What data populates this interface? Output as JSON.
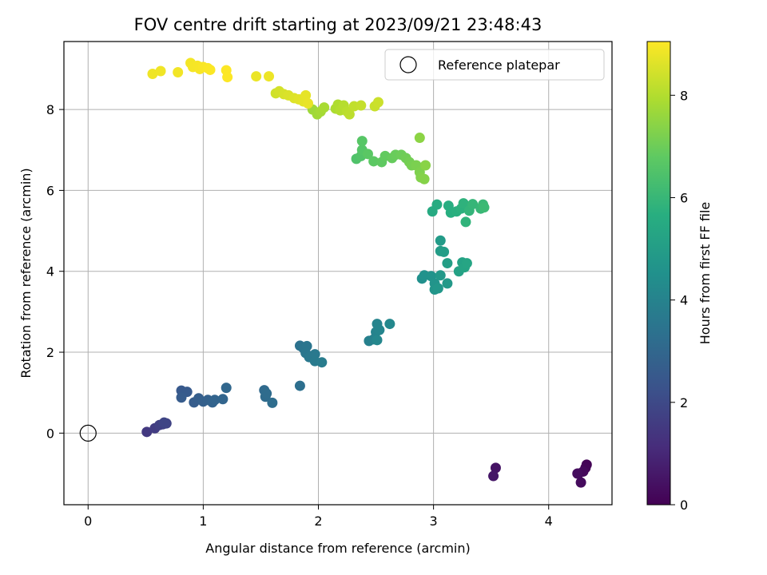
{
  "chart_data": {
    "type": "scatter",
    "title": "FOV centre drift starting at 2023/09/21 23:48:43",
    "xlabel": "Angular distance from reference (arcmin)",
    "ylabel": "Rotation from reference (arcmin)",
    "xlim": [
      -0.21,
      4.55
    ],
    "ylim": [
      -1.77,
      9.68
    ],
    "xticks": [
      0,
      1,
      2,
      3,
      4
    ],
    "yticks": [
      0,
      2,
      4,
      6,
      8
    ],
    "grid": true,
    "legend": {
      "placement": "top-right",
      "entries": [
        "Reference platepar"
      ]
    },
    "colorbar": {
      "label": "Hours from first FF file",
      "colormap": "viridis",
      "range": [
        0,
        9.05
      ],
      "ticks": [
        0,
        2,
        4,
        6,
        8
      ]
    },
    "reference_point": {
      "x": 0,
      "y": 0,
      "label": "Reference platepar"
    },
    "points": [
      {
        "x": 4.33,
        "y": -0.78,
        "c": 0.05
      },
      {
        "x": 4.32,
        "y": -0.86,
        "c": 0.1
      },
      {
        "x": 4.26,
        "y": -1.0,
        "c": 0.15
      },
      {
        "x": 4.3,
        "y": -0.95,
        "c": 0.2
      },
      {
        "x": 4.28,
        "y": -1.22,
        "c": 0.25
      },
      {
        "x": 4.25,
        "y": -1.0,
        "c": 0.3
      },
      {
        "x": 3.54,
        "y": -0.86,
        "c": 0.45
      },
      {
        "x": 3.52,
        "y": -1.06,
        "c": 0.55
      },
      {
        "x": 0.51,
        "y": 0.03,
        "c": 1.5
      },
      {
        "x": 0.58,
        "y": 0.12,
        "c": 1.6
      },
      {
        "x": 0.62,
        "y": 0.2,
        "c": 1.7
      },
      {
        "x": 0.65,
        "y": 0.22,
        "c": 1.75
      },
      {
        "x": 0.68,
        "y": 0.24,
        "c": 1.8
      },
      {
        "x": 0.66,
        "y": 0.26,
        "c": 1.85
      },
      {
        "x": 0.81,
        "y": 1.05,
        "c": 2.5
      },
      {
        "x": 0.86,
        "y": 1.02,
        "c": 2.55
      },
      {
        "x": 0.81,
        "y": 0.88,
        "c": 2.6
      },
      {
        "x": 0.92,
        "y": 0.76,
        "c": 2.65
      },
      {
        "x": 0.96,
        "y": 0.86,
        "c": 2.7
      },
      {
        "x": 1.0,
        "y": 0.78,
        "c": 2.75
      },
      {
        "x": 1.04,
        "y": 0.82,
        "c": 2.8
      },
      {
        "x": 1.08,
        "y": 0.76,
        "c": 2.85
      },
      {
        "x": 1.1,
        "y": 0.82,
        "c": 2.9
      },
      {
        "x": 1.17,
        "y": 0.84,
        "c": 2.95
      },
      {
        "x": 1.2,
        "y": 1.12,
        "c": 3.0
      },
      {
        "x": 1.53,
        "y": 1.06,
        "c": 3.1
      },
      {
        "x": 1.54,
        "y": 0.9,
        "c": 3.15
      },
      {
        "x": 1.55,
        "y": 0.98,
        "c": 3.18
      },
      {
        "x": 1.6,
        "y": 0.75,
        "c": 3.2
      },
      {
        "x": 1.84,
        "y": 1.17,
        "c": 3.3
      },
      {
        "x": 1.84,
        "y": 2.16,
        "c": 3.4
      },
      {
        "x": 1.87,
        "y": 2.1,
        "c": 3.45
      },
      {
        "x": 1.9,
        "y": 2.15,
        "c": 3.5
      },
      {
        "x": 1.89,
        "y": 1.98,
        "c": 3.55
      },
      {
        "x": 1.92,
        "y": 1.88,
        "c": 3.6
      },
      {
        "x": 1.97,
        "y": 1.95,
        "c": 3.65
      },
      {
        "x": 1.97,
        "y": 1.78,
        "c": 3.7
      },
      {
        "x": 2.03,
        "y": 1.75,
        "c": 3.75
      },
      {
        "x": 2.44,
        "y": 2.28,
        "c": 3.9
      },
      {
        "x": 2.48,
        "y": 2.32,
        "c": 3.95
      },
      {
        "x": 2.5,
        "y": 2.5,
        "c": 4.0
      },
      {
        "x": 2.51,
        "y": 2.7,
        "c": 4.05
      },
      {
        "x": 2.53,
        "y": 2.55,
        "c": 4.1
      },
      {
        "x": 2.51,
        "y": 2.3,
        "c": 4.15
      },
      {
        "x": 2.62,
        "y": 2.7,
        "c": 4.2
      },
      {
        "x": 2.9,
        "y": 3.82,
        "c": 4.5
      },
      {
        "x": 2.92,
        "y": 3.9,
        "c": 4.55
      },
      {
        "x": 2.98,
        "y": 3.88,
        "c": 4.6
      },
      {
        "x": 3.01,
        "y": 3.7,
        "c": 4.65
      },
      {
        "x": 3.01,
        "y": 3.55,
        "c": 4.7
      },
      {
        "x": 3.04,
        "y": 3.58,
        "c": 4.75
      },
      {
        "x": 3.06,
        "y": 3.9,
        "c": 4.8
      },
      {
        "x": 3.12,
        "y": 3.7,
        "c": 4.85
      },
      {
        "x": 3.06,
        "y": 4.76,
        "c": 4.9
      },
      {
        "x": 3.06,
        "y": 4.5,
        "c": 4.95
      },
      {
        "x": 3.09,
        "y": 4.48,
        "c": 5.0
      },
      {
        "x": 3.12,
        "y": 4.2,
        "c": 5.05
      },
      {
        "x": 3.22,
        "y": 4.0,
        "c": 5.15
      },
      {
        "x": 3.25,
        "y": 4.22,
        "c": 5.2
      },
      {
        "x": 3.27,
        "y": 4.1,
        "c": 5.25
      },
      {
        "x": 3.29,
        "y": 4.2,
        "c": 5.3
      },
      {
        "x": 2.99,
        "y": 5.48,
        "c": 5.5
      },
      {
        "x": 3.03,
        "y": 5.65,
        "c": 5.55
      },
      {
        "x": 3.13,
        "y": 5.62,
        "c": 5.6
      },
      {
        "x": 3.15,
        "y": 5.45,
        "c": 5.65
      },
      {
        "x": 3.2,
        "y": 5.48,
        "c": 5.7
      },
      {
        "x": 3.24,
        "y": 5.55,
        "c": 5.75
      },
      {
        "x": 3.26,
        "y": 5.68,
        "c": 5.8
      },
      {
        "x": 3.28,
        "y": 5.22,
        "c": 5.85
      },
      {
        "x": 3.31,
        "y": 5.5,
        "c": 5.9
      },
      {
        "x": 3.34,
        "y": 5.66,
        "c": 5.95
      },
      {
        "x": 3.41,
        "y": 5.55,
        "c": 6.0
      },
      {
        "x": 3.43,
        "y": 5.65,
        "c": 6.05
      },
      {
        "x": 3.44,
        "y": 5.58,
        "c": 6.1
      },
      {
        "x": 2.33,
        "y": 6.78,
        "c": 6.5
      },
      {
        "x": 2.37,
        "y": 6.85,
        "c": 6.55
      },
      {
        "x": 2.38,
        "y": 7.0,
        "c": 6.6
      },
      {
        "x": 2.38,
        "y": 7.22,
        "c": 6.65
      },
      {
        "x": 2.43,
        "y": 6.9,
        "c": 6.7
      },
      {
        "x": 2.48,
        "y": 6.72,
        "c": 6.75
      },
      {
        "x": 2.55,
        "y": 6.7,
        "c": 6.8
      },
      {
        "x": 2.58,
        "y": 6.85,
        "c": 6.85
      },
      {
        "x": 2.64,
        "y": 6.8,
        "c": 6.9
      },
      {
        "x": 2.67,
        "y": 6.88,
        "c": 6.95
      },
      {
        "x": 2.72,
        "y": 6.88,
        "c": 7.0
      },
      {
        "x": 2.76,
        "y": 6.8,
        "c": 7.05
      },
      {
        "x": 2.79,
        "y": 6.7,
        "c": 7.1
      },
      {
        "x": 2.81,
        "y": 6.62,
        "c": 7.15
      },
      {
        "x": 2.85,
        "y": 6.62,
        "c": 7.2
      },
      {
        "x": 2.88,
        "y": 6.45,
        "c": 7.25
      },
      {
        "x": 2.89,
        "y": 6.32,
        "c": 7.3
      },
      {
        "x": 2.92,
        "y": 6.28,
        "c": 7.35
      },
      {
        "x": 2.93,
        "y": 6.62,
        "c": 7.4
      },
      {
        "x": 2.88,
        "y": 7.3,
        "c": 7.45
      },
      {
        "x": 1.95,
        "y": 8.0,
        "c": 7.7
      },
      {
        "x": 1.99,
        "y": 7.88,
        "c": 7.75
      },
      {
        "x": 2.02,
        "y": 7.95,
        "c": 7.8
      },
      {
        "x": 2.05,
        "y": 8.05,
        "c": 7.85
      },
      {
        "x": 2.15,
        "y": 8.02,
        "c": 7.9
      },
      {
        "x": 2.17,
        "y": 8.12,
        "c": 7.95
      },
      {
        "x": 2.19,
        "y": 7.98,
        "c": 8.0
      },
      {
        "x": 2.22,
        "y": 8.1,
        "c": 8.05
      },
      {
        "x": 2.25,
        "y": 7.95,
        "c": 8.1
      },
      {
        "x": 2.27,
        "y": 7.88,
        "c": 8.15
      },
      {
        "x": 2.31,
        "y": 8.08,
        "c": 8.2
      },
      {
        "x": 2.37,
        "y": 8.1,
        "c": 8.25
      },
      {
        "x": 2.49,
        "y": 8.08,
        "c": 8.3
      },
      {
        "x": 2.52,
        "y": 8.18,
        "c": 8.35
      },
      {
        "x": 1.63,
        "y": 8.4,
        "c": 8.4
      },
      {
        "x": 1.66,
        "y": 8.45,
        "c": 8.45
      },
      {
        "x": 1.7,
        "y": 8.38,
        "c": 8.5
      },
      {
        "x": 1.74,
        "y": 8.35,
        "c": 8.55
      },
      {
        "x": 1.79,
        "y": 8.28,
        "c": 8.6
      },
      {
        "x": 1.83,
        "y": 8.25,
        "c": 8.65
      },
      {
        "x": 1.87,
        "y": 8.2,
        "c": 8.7
      },
      {
        "x": 1.89,
        "y": 8.35,
        "c": 8.72
      },
      {
        "x": 1.91,
        "y": 8.15,
        "c": 8.75
      },
      {
        "x": 1.46,
        "y": 8.82,
        "c": 8.8
      },
      {
        "x": 1.57,
        "y": 8.82,
        "c": 8.82
      },
      {
        "x": 0.56,
        "y": 8.88,
        "c": 8.85
      },
      {
        "x": 0.63,
        "y": 8.95,
        "c": 8.87
      },
      {
        "x": 0.78,
        "y": 8.92,
        "c": 8.89
      },
      {
        "x": 0.89,
        "y": 9.15,
        "c": 8.91
      },
      {
        "x": 0.91,
        "y": 9.05,
        "c": 8.93
      },
      {
        "x": 0.95,
        "y": 9.08,
        "c": 8.95
      },
      {
        "x": 0.97,
        "y": 9.0,
        "c": 8.97
      },
      {
        "x": 1.0,
        "y": 9.05,
        "c": 8.99
      },
      {
        "x": 1.04,
        "y": 9.02,
        "c": 9.01
      },
      {
        "x": 1.06,
        "y": 8.98,
        "c": 9.02
      },
      {
        "x": 1.2,
        "y": 8.97,
        "c": 9.03
      },
      {
        "x": 1.21,
        "y": 8.8,
        "c": 9.04
      }
    ]
  }
}
